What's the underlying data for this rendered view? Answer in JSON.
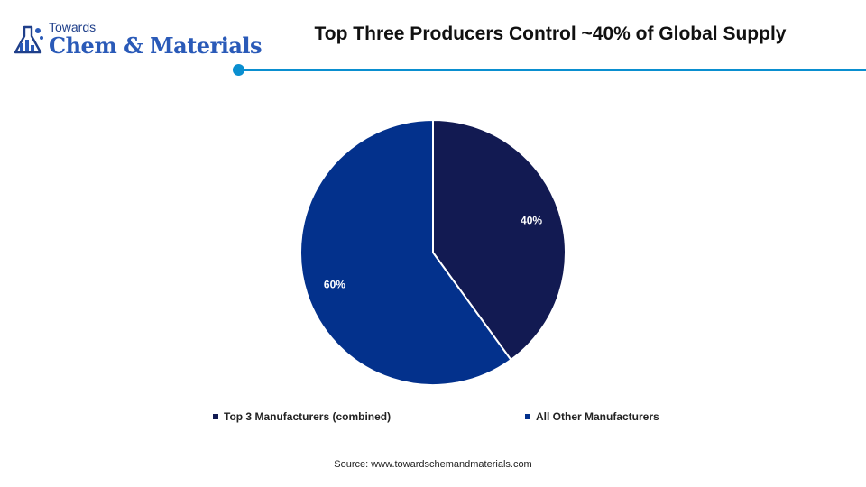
{
  "brand": {
    "name_top": "Towards",
    "name_main": "Chem & Materials",
    "logo_icon": "flask-chart-icon"
  },
  "header": {
    "title": "Top Three Producers Control ~40% of Global Supply"
  },
  "colors": {
    "accent_rule": "#0a8fd0",
    "slice_top3": "#121a52",
    "slice_others": "#03318c"
  },
  "chart_data": {
    "type": "pie",
    "title": "Top Three Producers Control ~40% of Global Supply",
    "categories": [
      "Top 3 Manufacturers (combined)",
      "All Other Manufacturers"
    ],
    "values": [
      40,
      60
    ],
    "data_labels": [
      "40%",
      "60%"
    ],
    "colors": [
      "#121a52",
      "#03318c"
    ],
    "legend_position": "bottom",
    "start_angle": "12 o'clock, clockwise"
  },
  "footer": {
    "source": "Source: www.towardschemandmaterials.com"
  }
}
